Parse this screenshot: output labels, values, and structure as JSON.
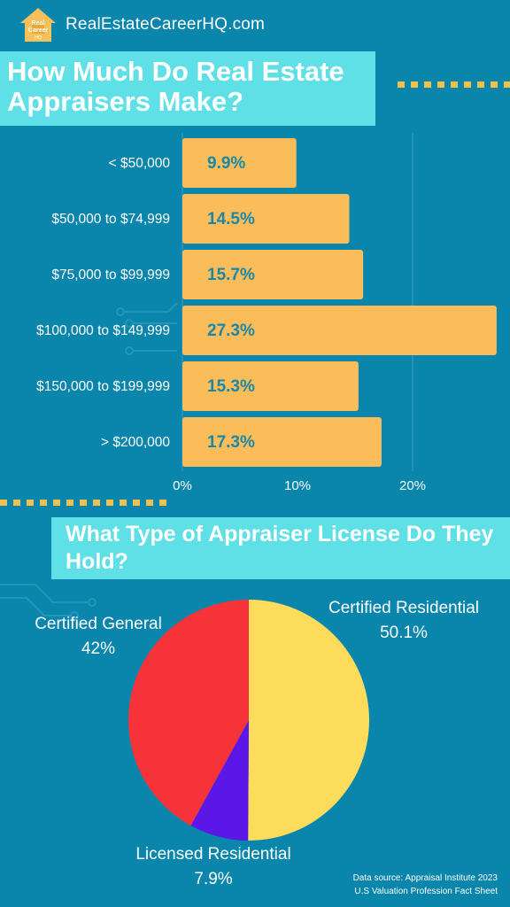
{
  "header": {
    "logo_text": "Real Career HQ",
    "site": "RealEstateCareerHQ.com"
  },
  "title1": "How Much Do Real Estate Appraisers Make?",
  "title2": "What Type of Appraiser License Do They Hold?",
  "colors": {
    "background": "#0a86ac",
    "title_box": "#5ee0e6",
    "bar": "#fbbd59",
    "bar_label": "#1b87a8",
    "accent_dots": "#f2c04e"
  },
  "chart_data": [
    {
      "type": "bar",
      "orientation": "horizontal",
      "categories": [
        "< $50,000",
        "$50,000 to $74,999",
        "$75,000 to $99,999",
        "$100,000 to $149,999",
        "$150,000 to $199,999",
        "> $200,000"
      ],
      "values": [
        9.9,
        14.5,
        15.7,
        27.3,
        15.3,
        17.3
      ],
      "value_labels": [
        "9.9%",
        "14.5%",
        "15.7%",
        "27.3%",
        "15.3%",
        "17.3%"
      ],
      "xlim": [
        0,
        27.3
      ],
      "xticks": [
        0,
        10,
        20
      ],
      "xtick_labels": [
        "0%",
        "10%",
        "20%"
      ],
      "grid": "vertical lines at 0% and 20%"
    },
    {
      "type": "pie",
      "start": "12 o'clock",
      "direction": "clockwise",
      "slices": [
        {
          "label": "Certified Residential",
          "value": 50.1,
          "value_label": "50.1%",
          "color": "#fddc5c"
        },
        {
          "label": "Licensed Residential",
          "value": 7.9,
          "value_label": "7.9%",
          "color": "#5b17e8"
        },
        {
          "label": "Certified General",
          "value": 42,
          "value_label": "42%",
          "color": "#f7333a"
        }
      ]
    }
  ],
  "footer": {
    "source_line1": "Data source: Appraisal Institute 2023",
    "source_line2": "U.S Valuation Profession Fact Sheet"
  }
}
